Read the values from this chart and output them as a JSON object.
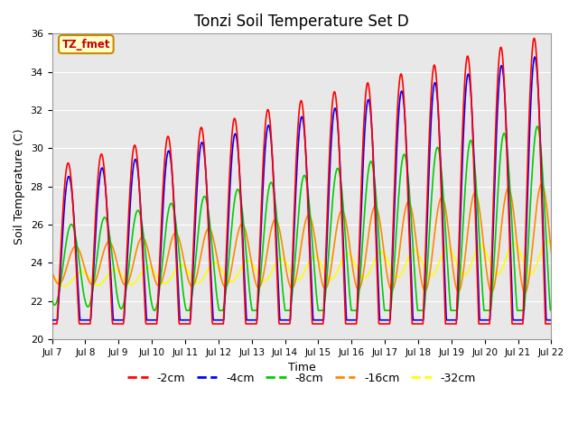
{
  "title": "Tonzi Soil Temperature Set D",
  "xlabel": "Time",
  "ylabel": "Soil Temperature (C)",
  "ylim": [
    20,
    36
  ],
  "xlim": [
    0,
    15
  ],
  "annotation": "TZ_fmet",
  "bg_color": "#e8e8e8",
  "series": {
    "-2cm": {
      "color": "#ff0000",
      "lw": 1.2
    },
    "-4cm": {
      "color": "#0000ff",
      "lw": 1.2
    },
    "-8cm": {
      "color": "#00cc00",
      "lw": 1.2
    },
    "-16cm": {
      "color": "#ff8800",
      "lw": 1.2
    },
    "-32cm": {
      "color": "#ffff00",
      "lw": 1.2
    }
  },
  "xtick_labels": [
    "Jul 7",
    "Jul 8",
    "Jul 9",
    "Jul 10",
    "Jul 11",
    "Jul 12",
    "Jul 13",
    "Jul 14",
    "Jul 15",
    "Jul 16",
    "Jul 17",
    "Jul 18",
    "Jul 19",
    "Jul 20",
    "Jul 21",
    "Jul 22"
  ],
  "xtick_positions": [
    0,
    1,
    2,
    3,
    4,
    5,
    6,
    7,
    8,
    9,
    10,
    11,
    12,
    13,
    14,
    15
  ],
  "ytick_positions": [
    20,
    22,
    24,
    26,
    28,
    30,
    32,
    34,
    36
  ]
}
